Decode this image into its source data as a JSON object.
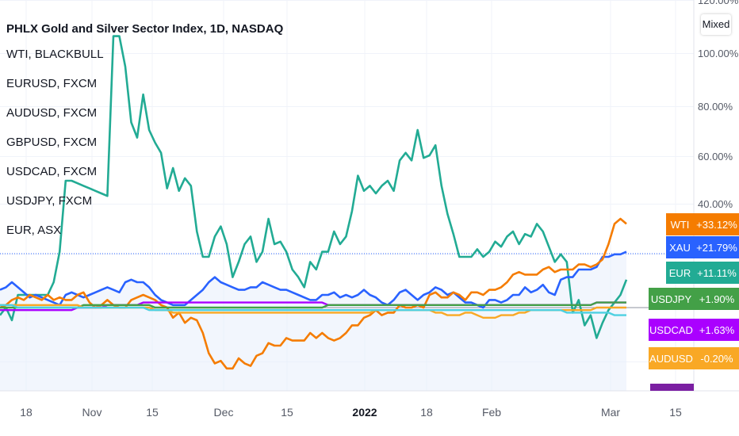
{
  "legend": {
    "title": "PHLX Gold and Silver Sector Index, 1D, NASDAQ",
    "items": [
      "WTI, BLACKBULL",
      "EURUSD, FXCM",
      "AUDUSD, FXCM",
      "GBPUSD, FXCM",
      "USDCAD, FXCM",
      "USDJPY, FXCM",
      "EUR, ASX"
    ]
  },
  "scale_mode_label": "Mixed",
  "chart_data": {
    "type": "line",
    "y_unit": "%",
    "yticks": [
      "120.00%",
      "100.00%",
      "80.00%",
      "60.00%",
      "40.00%"
    ],
    "xticks": [
      "18",
      "Nov",
      "15",
      "Dec",
      "15",
      "2022",
      "18",
      "Feb",
      "Mar",
      "15"
    ],
    "badges": [
      {
        "name": "WTI",
        "value": "+33.12%",
        "color": "#f57c00"
      },
      {
        "name": "XAU",
        "value": "+21.79%",
        "color": "#2962ff"
      },
      {
        "name": "EUR",
        "value": "+11.11%",
        "color": "#22ab94"
      },
      {
        "name": "USDJPY",
        "value": "+1.90%",
        "color": "#43a047"
      },
      {
        "name": "USDCAD",
        "value": "+1.63%",
        "color": "#aa00ff"
      },
      {
        "name": "AUDUSD",
        "value": "-0.20%",
        "color": "#f9a825"
      }
    ],
    "series": [
      {
        "name": "EUR",
        "color": "#22ab94",
        "values": [
          -3,
          0,
          -5,
          5,
          5,
          5,
          5,
          5,
          5,
          10,
          22,
          50,
          50,
          49,
          48,
          47,
          46,
          45,
          44,
          107,
          107,
          95,
          73,
          67,
          84,
          70,
          65,
          61,
          47,
          55,
          46,
          51,
          48,
          30,
          20,
          20,
          28,
          32,
          25,
          12,
          18,
          25,
          28,
          18,
          22,
          35,
          25,
          26,
          22,
          15,
          12,
          8,
          18,
          15,
          22,
          22,
          30,
          25,
          28,
          38,
          52,
          46,
          48,
          45,
          48,
          50,
          46,
          58,
          61,
          58,
          70,
          59,
          60,
          64,
          48,
          37,
          29,
          20,
          20,
          20,
          23,
          20,
          22,
          26,
          24,
          28,
          30,
          25,
          29,
          28,
          33,
          30,
          24,
          18,
          21,
          18,
          -2,
          3,
          -7,
          -3,
          -12,
          -6,
          -1,
          2,
          5,
          11
        ]
      },
      {
        "name": "XAU",
        "color": "#2962ff",
        "values": [
          7,
          8,
          10,
          8,
          6,
          4,
          5,
          4,
          3,
          2,
          1,
          5,
          6,
          5,
          4,
          5,
          6,
          7,
          8,
          7,
          6,
          10,
          11,
          10,
          10,
          8,
          5,
          3,
          2,
          1,
          1,
          1,
          3,
          5,
          7,
          10,
          12,
          10,
          9,
          8,
          7,
          7,
          8,
          8,
          10,
          9,
          8,
          7,
          7,
          6,
          5,
          4,
          3,
          3,
          5,
          5,
          6,
          4,
          5,
          4,
          5,
          7,
          5,
          4,
          2,
          1,
          3,
          6,
          7,
          5,
          3,
          5,
          6,
          8,
          7,
          5,
          6,
          4,
          2,
          2,
          1,
          0,
          3,
          3,
          2,
          3,
          5,
          5,
          8,
          6,
          7,
          9,
          6,
          5,
          11,
          12,
          12,
          15,
          15,
          15,
          16,
          20,
          20,
          21,
          21,
          22
        ]
      },
      {
        "name": "WTI",
        "color": "#f57c00",
        "values": [
          0,
          1,
          3,
          4,
          3,
          5,
          4,
          3,
          5,
          3,
          4,
          3,
          3,
          5,
          6,
          2,
          0,
          1,
          3,
          1,
          0,
          0,
          3,
          4,
          5,
          4,
          3,
          1,
          0,
          -4,
          -2,
          -6,
          -4,
          -5,
          -10,
          -18,
          -22,
          -21,
          -24,
          -24,
          -20,
          -22,
          -23,
          -19,
          -18,
          -14,
          -15,
          -15,
          -12,
          -13,
          -13,
          -13,
          -10,
          -12,
          -10,
          -12,
          -13,
          -12,
          -10,
          -7,
          -7,
          -4,
          -3,
          -1,
          -3,
          -2,
          -2,
          1,
          0,
          0,
          1,
          0,
          5,
          6,
          4,
          4,
          6,
          5,
          3,
          6,
          6,
          5,
          7,
          7,
          8,
          10,
          13,
          14,
          13,
          13,
          13,
          15,
          16,
          14,
          15,
          15,
          15,
          17,
          17,
          16,
          17,
          19,
          25,
          33,
          35,
          33
        ]
      },
      {
        "name": "USDCAD",
        "color": "#aa00ff",
        "values": [
          -1,
          -1,
          -1,
          -1,
          -1,
          -1,
          -1,
          -1,
          -1,
          -1,
          -1,
          -1,
          -1,
          0,
          0,
          0,
          0,
          0,
          1,
          1,
          1,
          1,
          1,
          1,
          2,
          2,
          2,
          2,
          2,
          2,
          2,
          2,
          2,
          2,
          2,
          2,
          2,
          2,
          2,
          2,
          2,
          2,
          2,
          2,
          2,
          2,
          2,
          2,
          2,
          2,
          2,
          2,
          2,
          2,
          2,
          1,
          1,
          1,
          1,
          1,
          1,
          1,
          1,
          1,
          1,
          1,
          1,
          1,
          1,
          1,
          1,
          1,
          1,
          1,
          1,
          1,
          1,
          1,
          1,
          1,
          1,
          1,
          1,
          1,
          1,
          1,
          1,
          1,
          1,
          1,
          1,
          1,
          1,
          1,
          1,
          1,
          1,
          1,
          1,
          1,
          2,
          2,
          2,
          2,
          2,
          2
        ]
      },
      {
        "name": "USDJPY",
        "color": "#43a047",
        "values": [
          0,
          0,
          0,
          0,
          0,
          0,
          0,
          0,
          0,
          0,
          0,
          0,
          0,
          0,
          1,
          1,
          1,
          1,
          1,
          1,
          1,
          1,
          1,
          1,
          1,
          1,
          0,
          0,
          0,
          0,
          0,
          0,
          0,
          0,
          0,
          0,
          0,
          0,
          0,
          0,
          0,
          0,
          0,
          0,
          0,
          0,
          0,
          0,
          0,
          0,
          0,
          0,
          0,
          0,
          0,
          1,
          1,
          1,
          1,
          1,
          1,
          1,
          1,
          1,
          1,
          1,
          1,
          1,
          1,
          1,
          1,
          1,
          1,
          1,
          1,
          1,
          1,
          1,
          1,
          1,
          1,
          1,
          1,
          1,
          1,
          1,
          1,
          1,
          1,
          1,
          1,
          1,
          1,
          1,
          1,
          1,
          1,
          1,
          1,
          1,
          2,
          2,
          2,
          2,
          2,
          2
        ]
      },
      {
        "name": "AUDUSD",
        "color": "#f9a825",
        "values": [
          1,
          1,
          1,
          1,
          1,
          1,
          1,
          1,
          1,
          1,
          1,
          1,
          1,
          1,
          0,
          0,
          0,
          0,
          0,
          0,
          0,
          0,
          0,
          0,
          0,
          0,
          -1,
          -1,
          -1,
          -2,
          -2,
          -2,
          -2,
          -2,
          -2,
          -2,
          -2,
          -2,
          -2,
          -2,
          -2,
          -2,
          -2,
          -2,
          -2,
          -2,
          -2,
          -2,
          -2,
          -2,
          -2,
          -2,
          -2,
          -2,
          -2,
          -2,
          -2,
          -2,
          -2,
          -2,
          -2,
          -2,
          -2,
          -1,
          -1,
          -1,
          -1,
          -1,
          -1,
          -1,
          -1,
          -1,
          -1,
          -2,
          -2,
          -3,
          -3,
          -3,
          -2,
          -2,
          -3,
          -4,
          -4,
          -4,
          -3,
          -3,
          -3,
          -2,
          -2,
          -1,
          -1,
          -1,
          -1,
          -1,
          -1,
          -1,
          -1,
          -1,
          -1,
          -1,
          0,
          0,
          0,
          0,
          0,
          0
        ]
      },
      {
        "name": "GBPUSD",
        "color": "#4dd0e1",
        "values": [
          1,
          1,
          1,
          0,
          0,
          0,
          0,
          0,
          0,
          0,
          0,
          0,
          0,
          0,
          0,
          0,
          0,
          0,
          0,
          0,
          0,
          0,
          0,
          0,
          0,
          -1,
          -1,
          -1,
          -1,
          -1,
          -1,
          -1,
          -1,
          -1,
          -1,
          -1,
          -1,
          -1,
          -1,
          -1,
          -1,
          -1,
          -1,
          -1,
          -1,
          -1,
          -1,
          -1,
          -1,
          -1,
          -1,
          -1,
          -1,
          -1,
          -1,
          -1,
          -1,
          -1,
          -1,
          -1,
          -1,
          -1,
          -1,
          -1,
          -1,
          -1,
          -1,
          -1,
          -1,
          -1,
          -1,
          -1,
          -1,
          -1,
          -1,
          -1,
          -1,
          -1,
          -1,
          -1,
          -1,
          -1,
          -1,
          -1,
          -1,
          -1,
          -1,
          -1,
          -1,
          -1,
          -1,
          -1,
          -1,
          -1,
          -1,
          -2,
          -2,
          -2,
          -2,
          -2,
          -2,
          -2,
          -2,
          -3,
          -3,
          -3
        ]
      }
    ]
  }
}
